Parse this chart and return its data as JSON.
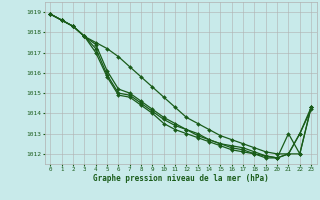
{
  "background_color": "#c8eaea",
  "grid_color": "#b0b0b0",
  "grid_color_minor": "#d0d0d0",
  "line_color": "#1a5c1a",
  "marker_color": "#1a5c1a",
  "xlabel": "Graphe pression niveau de la mer (hPa)",
  "xlabel_color": "#1a5c1a",
  "tick_color": "#1a5c1a",
  "xlim": [
    -0.5,
    23.5
  ],
  "ylim": [
    1011.5,
    1019.5
  ],
  "yticks": [
    1012,
    1013,
    1014,
    1015,
    1016,
    1017,
    1018,
    1019
  ],
  "xticks": [
    0,
    1,
    2,
    3,
    4,
    5,
    6,
    7,
    8,
    9,
    10,
    11,
    12,
    13,
    14,
    15,
    16,
    17,
    18,
    19,
    20,
    21,
    22,
    23
  ],
  "series": [
    [
      1018.9,
      1018.6,
      1018.3,
      1017.8,
      1017.5,
      1017.2,
      1016.8,
      1016.3,
      1015.8,
      1015.3,
      1014.8,
      1014.3,
      1013.8,
      1013.5,
      1013.2,
      1012.9,
      1012.7,
      1012.5,
      1012.3,
      1012.1,
      1012.0,
      1012.0,
      1013.0,
      1014.3
    ],
    [
      1018.9,
      1018.6,
      1018.3,
      1017.8,
      1017.4,
      1016.1,
      1015.2,
      1015.0,
      1014.6,
      1014.2,
      1013.8,
      1013.5,
      1013.2,
      1013.0,
      1012.7,
      1012.5,
      1012.4,
      1012.3,
      1012.1,
      1011.9,
      1011.8,
      1012.0,
      1013.0,
      1014.2
    ],
    [
      1018.9,
      1018.6,
      1018.3,
      1017.8,
      1017.2,
      1015.9,
      1015.0,
      1014.9,
      1014.5,
      1014.1,
      1013.7,
      1013.4,
      1013.2,
      1012.9,
      1012.7,
      1012.5,
      1012.3,
      1012.2,
      1012.0,
      1011.9,
      1011.8,
      1012.0,
      1012.0,
      1014.3
    ],
    [
      1018.9,
      1018.6,
      1018.3,
      1017.8,
      1017.0,
      1015.8,
      1014.9,
      1014.8,
      1014.4,
      1014.0,
      1013.5,
      1013.2,
      1013.0,
      1012.8,
      1012.6,
      1012.4,
      1012.2,
      1012.1,
      1012.0,
      1011.8,
      1011.8,
      1013.0,
      1012.0,
      1014.3
    ]
  ],
  "figsize": [
    3.2,
    2.0
  ],
  "dpi": 100
}
